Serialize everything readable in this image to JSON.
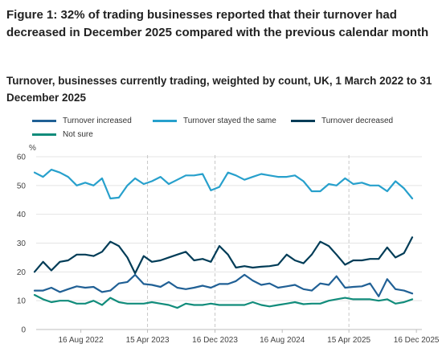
{
  "title": "Figure 1: 32% of trading businesses reported that their turnover had decreased in December 2025 compared with the previous calendar month",
  "subtitle": "Turnover, businesses currently trading, weighted by count, UK, 1 March 2022 to 31 December 2025",
  "chart_data": {
    "type": "line",
    "title": "Figure 1: 32% of trading businesses reported that their turnover had decreased in December 2025 compared with the previous calendar month",
    "subtitle": "Turnover, businesses currently trading, weighted by count, UK, 1 March 2022 to 31 December 2025",
    "ylabel": "%",
    "ylim": [
      0,
      60
    ],
    "yticks": [
      0,
      10,
      20,
      30,
      40,
      50,
      60
    ],
    "xticks": [
      "16 Aug 2022",
      "15 Apr 2023",
      "16 Dec 2023",
      "16 Aug 2024",
      "15 Apr 2025",
      "16 Dec 2025"
    ],
    "reference_lines": [
      "15 Apr 2023",
      "16 Dec 2023",
      "15 Apr 2025"
    ],
    "grid": true,
    "legend_position": "top",
    "x": [
      "2022-03",
      "2022-04",
      "2022-05",
      "2022-06",
      "2022-07",
      "2022-08",
      "2022-09",
      "2022-10",
      "2022-11",
      "2022-12",
      "2023-01",
      "2023-02",
      "2023-03",
      "2023-04",
      "2023-05",
      "2023-06",
      "2023-07",
      "2023-08",
      "2023-09",
      "2023-10",
      "2023-11",
      "2023-12",
      "2024-01",
      "2024-02",
      "2024-03",
      "2024-04",
      "2024-05",
      "2024-06",
      "2024-07",
      "2024-08",
      "2024-09",
      "2024-10",
      "2024-11",
      "2024-12",
      "2025-01",
      "2025-02",
      "2025-03",
      "2025-04",
      "2025-05",
      "2025-06",
      "2025-07",
      "2025-08",
      "2025-09",
      "2025-10",
      "2025-11",
      "2025-12"
    ],
    "series": [
      {
        "name": "Turnover increased",
        "color": "#206095",
        "values": [
          13.5,
          13.5,
          14.5,
          13,
          14,
          15,
          14.5,
          14.8,
          13,
          13.5,
          16,
          16.5,
          19,
          15.8,
          15.5,
          14.8,
          16.5,
          14.5,
          14,
          14.5,
          15.2,
          14.5,
          15.8,
          15.8,
          16.8,
          19,
          17,
          15.5,
          16,
          14.5,
          15,
          15.5,
          14,
          13.5,
          16,
          15.5,
          18.5,
          14.5,
          14.8,
          15,
          16,
          11.5,
          17.5,
          14,
          13.5,
          12.5
        ]
      },
      {
        "name": "Turnover stayed the same",
        "color": "#27a0cc",
        "values": [
          54.5,
          53,
          55.5,
          54.5,
          53,
          50,
          51,
          50,
          52.5,
          45.5,
          45.8,
          50,
          52.5,
          50.5,
          51.5,
          53,
          50.5,
          52,
          53.5,
          53.5,
          54,
          48.3,
          49.5,
          54.5,
          53.5,
          52,
          53,
          54,
          53.5,
          53,
          53,
          53.5,
          51.5,
          48,
          48,
          50.5,
          50,
          52.5,
          50.5,
          51,
          50,
          50,
          48,
          51.5,
          49,
          45.5
        ]
      },
      {
        "name": "Turnover decreased",
        "color": "#003c57",
        "values": [
          20,
          23.5,
          20.5,
          23.5,
          24,
          26,
          26,
          25.5,
          27,
          30.5,
          29,
          25,
          19.5,
          25.5,
          23.5,
          24,
          25,
          26,
          27,
          24,
          24.5,
          23.5,
          29,
          26,
          21.5,
          22,
          21.5,
          21.8,
          22,
          22.5,
          26,
          24,
          23,
          26,
          30.5,
          29,
          26,
          22.5,
          24,
          24,
          24.5,
          24.5,
          28.5,
          25,
          26.5,
          32
        ]
      },
      {
        "name": "Not sure",
        "color": "#118c7b",
        "values": [
          12,
          10.5,
          9.5,
          10,
          10,
          9,
          9,
          10,
          8.5,
          11,
          9.5,
          9,
          9,
          9,
          9.5,
          9,
          8.5,
          7.5,
          9,
          8.5,
          8.5,
          9,
          8.5,
          8.5,
          8.5,
          8.5,
          9.5,
          8.5,
          8,
          8.5,
          9,
          9.5,
          8.8,
          9,
          9,
          10,
          10.5,
          11,
          10.5,
          10.5,
          10.5,
          10,
          10.5,
          9,
          9.5,
          10.5
        ]
      }
    ]
  }
}
